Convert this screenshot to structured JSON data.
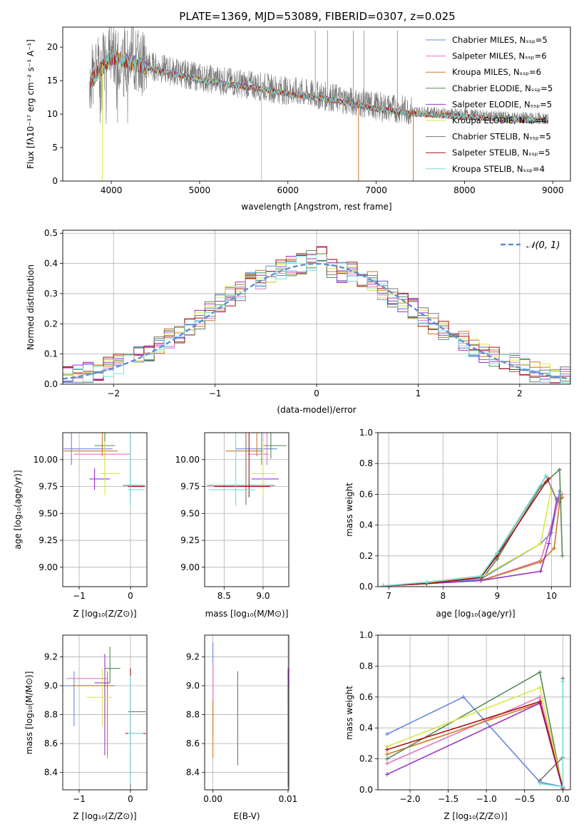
{
  "title": "PLATE=1369, MJD=53089, FIBERID=0307, z=0.025",
  "series_names": [
    "Chabrier MILES, N_SSP=5",
    "Salpeter MILES, N_SSP=6",
    "Kroupa MILES, N_SSP=6",
    "Chabrier ELODIE, N_SSP=5",
    "Salpeter ELODIE, N_SSP=5",
    "Kroupa ELODIE, N_SSP=4",
    "Chabrier STELIB, N_SSP=5",
    "Salpeter STELIB, N_SSP=5",
    "Kroupa STELIB, N_SSP=4"
  ],
  "series_colors": [
    "#6688dd",
    "#e377c2",
    "#cc7a22",
    "#558855",
    "#9933cc",
    "#d8e844",
    "#777777",
    "#aa1111",
    "#77dddd"
  ],
  "chart_data": [
    {
      "type": "line",
      "title": "PLATE=1369, MJD=53089, FIBERID=0307, z=0.025",
      "xlabel": "wavelength [Angstrom, rest frame]",
      "ylabel": "Flux [f_λ 10^-17 erg cm^-2 s^-1 A^-1]",
      "xlim": [
        3450,
        9200
      ],
      "ylim": [
        0,
        23
      ],
      "xticks": [
        4000,
        5000,
        6000,
        7000,
        8000,
        9000
      ],
      "yticks": [
        0,
        5,
        10,
        15,
        20
      ],
      "legend_position": "top-right",
      "legend": [
        "Chabrier MILES, N_SSP=5",
        "Salpeter MILES, N_SSP=6",
        "Kroupa MILES, N_SSP=6",
        "Chabrier ELODIE, N_SSP=5",
        "Salpeter ELODIE, N_SSP=5",
        "Kroupa ELODIE, N_SSP=4",
        "Chabrier STELIB, N_SSP=5",
        "Salpeter STELIB, N_SSP=5",
        "Kroupa STELIB, N_SSP=4"
      ],
      "data_envelope": {
        "x": [
          3750,
          4000,
          4500,
          5000,
          5500,
          6000,
          6500,
          7000,
          7400,
          8000,
          8500,
          8950
        ],
        "y": [
          15,
          19,
          17,
          15.5,
          14.5,
          13.5,
          12.5,
          11.2,
          10.5,
          10,
          9.6,
          9.4
        ]
      },
      "model_cutoffs": [
        {
          "series": "Kroupa ELODIE, N_SSP=4",
          "x": 3900
        },
        {
          "series": "Kroupa STELIB, N_SSP=4",
          "x": 5700
        },
        {
          "series": "Kroupa MILES, N_SSP=6",
          "x": 6800
        },
        {
          "series": "Kroupa MILES, N_SSP=6",
          "x": 7420
        }
      ]
    },
    {
      "type": "bar",
      "xlabel": "(data-model)/error",
      "ylabel": "Normed distribution",
      "xlim": [
        -2.5,
        2.5
      ],
      "ylim": [
        0,
        0.51
      ],
      "xticks": [
        -2,
        -1,
        0,
        1,
        2
      ],
      "yticks": [
        0.0,
        0.1,
        0.2,
        0.3,
        0.4,
        0.5
      ],
      "legend_position": "top-right",
      "legend": [
        "N(0,1)"
      ],
      "reference_curve": "N(0,1)",
      "bin_width": 0.1,
      "histogram_centers": [
        -2.45,
        -2.35,
        -2.25,
        -2.15,
        -2.05,
        -1.95,
        -1.85,
        -1.75,
        -1.65,
        -1.55,
        -1.45,
        -1.35,
        -1.25,
        -1.15,
        -1.05,
        -0.95,
        -0.85,
        -0.75,
        -0.65,
        -0.55,
        -0.45,
        -0.35,
        -0.25,
        -0.15,
        -0.05,
        0.05,
        0.15,
        0.25,
        0.35,
        0.45,
        0.55,
        0.65,
        0.75,
        0.85,
        0.95,
        1.05,
        1.15,
        1.25,
        1.35,
        1.45,
        1.55,
        1.65,
        1.75,
        1.85,
        1.95,
        2.05,
        2.15,
        2.25,
        2.35,
        2.45
      ],
      "histogram_mean": [
        0.024,
        0.03,
        0.038,
        0.045,
        0.055,
        0.066,
        0.078,
        0.095,
        0.11,
        0.13,
        0.15,
        0.17,
        0.19,
        0.21,
        0.24,
        0.27,
        0.29,
        0.31,
        0.34,
        0.35,
        0.37,
        0.38,
        0.39,
        0.4,
        0.41,
        0.43,
        0.38,
        0.37,
        0.37,
        0.34,
        0.34,
        0.31,
        0.29,
        0.27,
        0.25,
        0.22,
        0.2,
        0.18,
        0.16,
        0.14,
        0.12,
        0.1,
        0.09,
        0.08,
        0.07,
        0.05,
        0.04,
        0.035,
        0.03,
        0.027
      ]
    },
    {
      "type": "scatter",
      "xlabel": "Z [log10(Z/Z⊙)]",
      "ylabel": "age [log10(age/yr)]",
      "xlim": [
        -1.32,
        0.32
      ],
      "ylim": [
        8.82,
        10.25
      ],
      "xticks": [
        -1,
        0
      ],
      "yticks": [
        9.0,
        9.25,
        9.5,
        9.75,
        10.0
      ],
      "points": [
        {
          "x": -1.15,
          "y": 10.1,
          "xerr": [
            0.15,
            0.8
          ],
          "yerr": [
            0.15,
            0.3
          ]
        },
        {
          "x": -0.5,
          "y": 10.05,
          "xerr": [
            0.6,
            0.5
          ],
          "yerr": [
            0.1,
            0.62
          ]
        },
        {
          "x": -0.55,
          "y": 10.08,
          "xerr": [
            0.75,
            0.3
          ],
          "yerr": [
            0.05,
            0.45
          ]
        },
        {
          "x": -0.5,
          "y": 10.13,
          "xerr": [
            0.2,
            0.2
          ],
          "yerr": [
            0.12,
            0.2
          ]
        },
        {
          "x": -0.7,
          "y": 9.82,
          "xerr": [
            0.1,
            0.3
          ],
          "yerr": [
            0.1,
            0.1
          ]
        },
        {
          "x": -0.5,
          "y": 9.87,
          "xerr": [
            0.1,
            0.3
          ],
          "yerr": [
            0.2,
            0.3
          ]
        },
        {
          "x": 0,
          "y": 9.76,
          "xerr": [
            0.15,
            0.28
          ],
          "yerr": [
            0.18,
            0.76
          ]
        },
        {
          "x": 0,
          "y": 9.75,
          "xerr": [
            0.05,
            0.28
          ],
          "yerr": [
            0.1,
            0.87
          ]
        },
        {
          "x": 0,
          "y": 9.72,
          "xerr": [
            0.05,
            0.28
          ],
          "yerr": [
            0.15,
            0.82
          ]
        }
      ]
    },
    {
      "type": "scatter",
      "xlabel": "mass [log10(M/M⊙)]",
      "ylabel": "",
      "xlim": [
        8.25,
        9.33
      ],
      "ylim": [
        8.82,
        10.25
      ],
      "xticks": [
        8.5,
        9.0
      ],
      "yticks": [
        9.0,
        9.25,
        9.5,
        9.75,
        10.0
      ],
      "points": [
        {
          "x": 8.98,
          "y": 10.1,
          "xerr": [
            0.33,
            0.2
          ],
          "yerr": [
            0.15,
            0.3
          ]
        },
        {
          "x": 9.05,
          "y": 10.05,
          "xerr": [
            0.25,
            0.02
          ],
          "yerr": [
            0.1,
            0.62
          ]
        },
        {
          "x": 8.92,
          "y": 10.08,
          "xerr": [
            0.4,
            0.08
          ],
          "yerr": [
            0.05,
            0.45
          ]
        },
        {
          "x": 9.1,
          "y": 10.13,
          "xerr": [
            0.1,
            0.2
          ],
          "yerr": [
            0.12,
            0.2
          ]
        },
        {
          "x": 9.0,
          "y": 9.82,
          "xerr": [
            0.15,
            0.2
          ],
          "yerr": [
            0.1,
            0.1
          ]
        },
        {
          "x": 9.0,
          "y": 9.87,
          "xerr": [
            0.15,
            0.15
          ],
          "yerr": [
            0.2,
            0.3
          ]
        },
        {
          "x": 8.78,
          "y": 9.76,
          "xerr": [
            0.5,
            0.37
          ],
          "yerr": [
            0.18,
            0.76
          ]
        },
        {
          "x": 8.82,
          "y": 9.75,
          "xerr": [
            0.45,
            0.27
          ],
          "yerr": [
            0.1,
            0.87
          ]
        },
        {
          "x": 8.65,
          "y": 9.72,
          "xerr": [
            0.35,
            0.25
          ],
          "yerr": [
            0.15,
            0.82
          ]
        }
      ]
    },
    {
      "type": "line",
      "xlabel": "age [log10(age/yr)]",
      "ylabel": "mass weight",
      "xlim": [
        6.8,
        10.35
      ],
      "ylim": [
        0,
        1.0
      ],
      "xticks": [
        7,
        8,
        9,
        10
      ],
      "yticks": [
        0.0,
        0.2,
        0.4,
        0.6,
        0.8,
        1.0
      ],
      "grid": true,
      "series": [
        {
          "name": "Chabrier MILES, N_SSP=5",
          "x": [
            6.9,
            7.7,
            8.7,
            9.8,
            10.0,
            10.15
          ],
          "y": [
            0.005,
            0.02,
            0.05,
            0.28,
            0.35,
            0.62
          ]
        },
        {
          "name": "Salpeter MILES, N_SSP=6",
          "x": [
            6.9,
            7.7,
            8.7,
            9.8,
            10.15,
            10.2
          ],
          "y": [
            0.005,
            0.02,
            0.04,
            0.17,
            0.58,
            0.6
          ]
        },
        {
          "name": "Kroupa MILES, N_SSP=6",
          "x": [
            6.9,
            7.7,
            8.7,
            9.8,
            10.05,
            10.15,
            10.2
          ],
          "y": [
            0.005,
            0.02,
            0.04,
            0.16,
            0.25,
            0.55,
            0.58
          ]
        },
        {
          "name": "Chabrier ELODIE, N_SSP=5",
          "x": [
            6.9,
            7.7,
            8.7,
            9.0,
            9.8,
            10.15,
            10.2
          ],
          "y": [
            0.005,
            0.02,
            0.04,
            0.18,
            0.65,
            0.76,
            0.2
          ]
        },
        {
          "name": "Salpeter ELODIE, N_SSP=5",
          "x": [
            6.9,
            7.7,
            8.7,
            9.8,
            9.95,
            10.1
          ],
          "y": [
            0.005,
            0.02,
            0.04,
            0.1,
            0.28,
            0.57
          ]
        },
        {
          "name": "Kroupa ELODIE, N_SSP=4",
          "x": [
            6.9,
            7.7,
            8.7,
            9.8,
            10.0
          ],
          "y": [
            0.005,
            0.03,
            0.06,
            0.28,
            0.64
          ]
        },
        {
          "name": "Chabrier STELIB, N_SSP=5",
          "x": [
            6.9,
            7.7,
            8.7,
            9.0,
            9.9,
            10.1
          ],
          "y": [
            0.005,
            0.02,
            0.06,
            0.21,
            0.72,
            0.56
          ]
        },
        {
          "name": "Salpeter STELIB, N_SSP=5",
          "x": [
            6.9,
            7.7,
            8.7,
            9.0,
            9.9,
            9.95
          ],
          "y": [
            0.005,
            0.02,
            0.06,
            0.2,
            0.68,
            0.7
          ]
        },
        {
          "name": "Kroupa STELIB, N_SSP=4",
          "x": [
            6.9,
            7.7,
            8.7,
            9.0,
            9.9
          ],
          "y": [
            0.005,
            0.03,
            0.07,
            0.22,
            0.72
          ]
        }
      ]
    },
    {
      "type": "scatter",
      "xlabel": "Z [log10(Z/Z⊙)]",
      "ylabel": "mass [log10(M/M⊙)]",
      "xlim": [
        -1.32,
        0.32
      ],
      "ylim": [
        8.28,
        9.35
      ],
      "xticks": [
        -1,
        0
      ],
      "yticks": [
        8.4,
        8.6,
        8.8,
        9.0,
        9.2
      ],
      "points": [
        {
          "x": -1.1,
          "y": 9.0,
          "xerr": [
            0.2,
            0.8
          ],
          "yerr": [
            0.28,
            0.1
          ]
        },
        {
          "x": -0.75,
          "y": 9.05,
          "xerr": [
            0.5,
            0.3
          ],
          "yerr": [
            0.0,
            0.0
          ]
        },
        {
          "x": -0.45,
          "y": 9.0,
          "xerr": [
            0.7,
            0.1
          ],
          "yerr": [
            0.5,
            0.1
          ]
        },
        {
          "x": -0.4,
          "y": 9.12,
          "xerr": [
            0.1,
            0.2
          ],
          "yerr": [
            0.1,
            0.15
          ]
        },
        {
          "x": -0.5,
          "y": 9.02,
          "xerr": [
            0.2,
            0.1
          ],
          "yerr": [
            0.5,
            0.2
          ]
        },
        {
          "x": -0.55,
          "y": 8.92,
          "xerr": [
            0.3,
            0.2
          ],
          "yerr": [
            0.2,
            0.2
          ]
        },
        {
          "x": 0,
          "y": 8.82,
          "xerr": [
            0.05,
            0.3
          ],
          "yerr": [
            0.55,
            0.3
          ]
        },
        {
          "x": 0,
          "y": 8.67,
          "xerr": [
            0.1,
            0.3
          ],
          "yerr": [
            0.3,
            0.45
          ]
        },
        {
          "x": 0,
          "y": 8.67,
          "xerr": [
            0.05,
            0.25
          ],
          "yerr": [
            0.35,
            0.4
          ]
        }
      ]
    },
    {
      "type": "scatter",
      "xlabel": "E(B-V)",
      "ylabel": "",
      "xlim": [
        -0.0011,
        0.0101
      ],
      "ylim": [
        8.28,
        9.35
      ],
      "xticks": [
        0.0,
        0.01
      ],
      "yticks": [
        8.4,
        8.6,
        8.8,
        9.0,
        9.2
      ],
      "points": [
        {
          "x": 0.0,
          "y": 9.1,
          "yerr": [
            0.2,
            0.2
          ]
        },
        {
          "x": 0.0,
          "y": 8.95,
          "yerr": [
            0.3,
            0.2
          ]
        },
        {
          "x": 0.0,
          "y": 8.7,
          "yerr": [
            0.2,
            0.2
          ]
        },
        {
          "x": 0.0033,
          "y": 8.78,
          "yerr": [
            0.33,
            0.32
          ]
        },
        {
          "x": 0.01,
          "y": 9.0,
          "yerr": [
            0.15,
            0.12
          ]
        },
        {
          "x": 0.01,
          "y": 8.9,
          "yerr": [
            0.55,
            0.1
          ]
        },
        {
          "x": 0.01,
          "y": 8.7,
          "yerr": [
            0.4,
            0.3
          ]
        }
      ]
    },
    {
      "type": "line",
      "xlabel": "Z [log10(Z/Z⊙)]",
      "ylabel": "mass weight",
      "xlim": [
        -2.42,
        0.1
      ],
      "ylim": [
        0,
        1.0
      ],
      "xticks": [
        -2.0,
        -1.5,
        -1.0,
        -0.5,
        0.0
      ],
      "yticks": [
        0.0,
        0.2,
        0.4,
        0.6,
        0.8,
        1.0
      ],
      "grid": true,
      "series": [
        {
          "name": "Chabrier MILES, N_SSP=5",
          "x": [
            -2.3,
            -1.3,
            -0.3,
            0.0
          ],
          "y": [
            0.36,
            0.6,
            0.05,
            0.02
          ]
        },
        {
          "name": "Salpeter MILES, N_SSP=6",
          "x": [
            -2.3,
            -0.3,
            0.0
          ],
          "y": [
            0.17,
            0.6,
            0.02
          ]
        },
        {
          "name": "Kroupa MILES, N_SSP=6",
          "x": [
            -2.3,
            -0.3,
            0.0
          ],
          "y": [
            0.23,
            0.56,
            0.02
          ]
        },
        {
          "name": "Chabrier ELODIE, N_SSP=5",
          "x": [
            -2.3,
            -0.3,
            0.0
          ],
          "y": [
            0.2,
            0.76,
            0.0
          ]
        },
        {
          "name": "Salpeter ELODIE, N_SSP=5",
          "x": [
            -2.3,
            -0.3,
            0.0
          ],
          "y": [
            0.1,
            0.56,
            0.0
          ]
        },
        {
          "name": "Kroupa ELODIE, N_SSP=4",
          "x": [
            -2.3,
            -0.3,
            0.0
          ],
          "y": [
            0.28,
            0.66,
            0.01
          ]
        },
        {
          "name": "Chabrier STELIB, N_SSP=5",
          "x": [
            -0.3,
            0.0,
            0.0
          ],
          "y": [
            0.06,
            0.21,
            0.72
          ]
        },
        {
          "name": "Salpeter STELIB, N_SSP=5",
          "x": [
            -2.3,
            -0.3,
            0.0
          ],
          "y": [
            0.26,
            0.57,
            0.01
          ]
        },
        {
          "name": "Kroupa STELIB, N_SSP=4",
          "x": [
            -0.3,
            0.0,
            0.0
          ],
          "y": [
            0.04,
            0.02,
            0.7
          ]
        }
      ]
    }
  ]
}
